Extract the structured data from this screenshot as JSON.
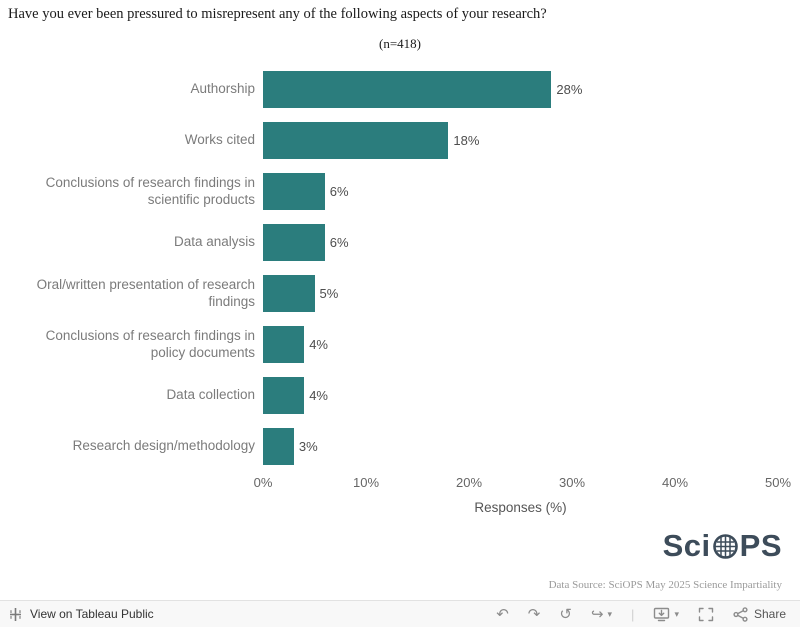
{
  "header": {
    "title": "Have you ever been pressured to misrepresent any of the following aspects of your research?",
    "subtitle": "(n=418)"
  },
  "chart_data": {
    "type": "bar",
    "orientation": "horizontal",
    "title": "Have you ever been pressured to misrepresent any of the following aspects of your research?",
    "subtitle": "(n=418)",
    "categories": [
      "Authorship",
      "Works cited",
      "Conclusions of research findings in scientific products",
      "Data analysis",
      "Oral/written presentation of research findings",
      "Conclusions of research findings in policy documents",
      "Data collection",
      "Research design/methodology"
    ],
    "values": [
      28,
      18,
      6,
      6,
      5,
      4,
      4,
      3
    ],
    "value_labels": [
      "28%",
      "18%",
      "6%",
      "6%",
      "5%",
      "4%",
      "4%",
      "3%"
    ],
    "xlabel": "Responses (%)",
    "ylabel": "",
    "xlim": [
      0,
      50
    ],
    "xticks": [
      "0%",
      "10%",
      "20%",
      "30%",
      "40%",
      "50%"
    ],
    "grid": false,
    "legend": null,
    "bar_color": "#2b7d7d"
  },
  "footer": {
    "logo_text_pre": "Sci",
    "logo_text_post": "PS",
    "data_source": "Data Source: SciOPS May 2025 Science Impartiality"
  },
  "toolbar": {
    "view_label": "View on Tableau Public",
    "share_label": "Share",
    "icons": {
      "undo": "↶",
      "redo": "↷",
      "replay": "↺",
      "forward": "↪",
      "caret_down": "▾",
      "separator": "|",
      "download_caret": "▾"
    }
  },
  "colors": {
    "bar": "#2b7d7d",
    "logo": "#3d4c5a",
    "toolbar_icon": "#8c8c8c"
  }
}
